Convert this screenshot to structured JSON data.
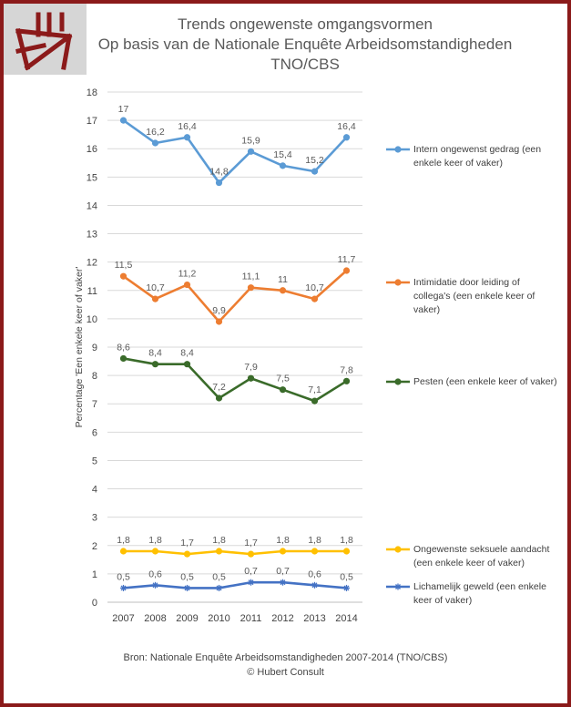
{
  "title": {
    "line1": "Trends ongewenste omgangsvormen",
    "line2": "Op basis van de Nationale Enquête Arbeidsomstandigheden",
    "line3": "TNO/CBS"
  },
  "logo": {
    "icon": "chair-logo-icon",
    "color": "#8b1a1a"
  },
  "footer": {
    "source": "Bron: Nationale Enquête Arbeidsomstandigheden 2007-2014 (TNO/CBS)",
    "credit": "© Hubert Consult"
  },
  "colors": {
    "frame": "#8b1a1a",
    "gridline": "#d9d9d9",
    "text": "#595959"
  },
  "chart_data": {
    "type": "line",
    "title": "Trends ongewenste omgangsvormen",
    "ylabel": "Percentage 'Een enkele keer of vaker'",
    "xlabel": "",
    "categories": [
      "2007",
      "2008",
      "2009",
      "2010",
      "2011",
      "2012",
      "2013",
      "2014"
    ],
    "ylim": [
      0,
      18
    ],
    "yticks": [
      "0",
      "1",
      "2",
      "3",
      "4",
      "5",
      "6",
      "7",
      "8",
      "9",
      "10",
      "11",
      "12",
      "13",
      "14",
      "15",
      "16",
      "17",
      "18"
    ],
    "grid": true,
    "legend_position": "right",
    "series": [
      {
        "name": "Intern ongewenst gedrag (een enkele keer of vaker)",
        "color": "#5b9bd5",
        "marker": "circle",
        "values": [
          17,
          16.2,
          16.4,
          14.8,
          15.9,
          15.4,
          15.2,
          16.4
        ],
        "labels": [
          "17",
          "16,2",
          "16,4",
          "14,8",
          "15,9",
          "15,4",
          "15,2",
          "16,4"
        ]
      },
      {
        "name": "Intimidatie door leiding of collega's (een enkele keer of vaker)",
        "color": "#ed7d31",
        "marker": "circle",
        "values": [
          11.5,
          10.7,
          11.2,
          9.9,
          11.1,
          11,
          10.7,
          11.7
        ],
        "labels": [
          "11,5",
          "10,7",
          "11,2",
          "9,9",
          "11,1",
          "11",
          "10,7",
          "11,7"
        ]
      },
      {
        "name": "Pesten (een enkele keer of vaker)",
        "color": "#3a6b2a",
        "marker": "circle",
        "values": [
          8.6,
          8.4,
          8.4,
          7.2,
          7.9,
          7.5,
          7.1,
          7.8
        ],
        "labels": [
          "8,6",
          "8,4",
          "8,4",
          "7,2",
          "7,9",
          "7,5",
          "7,1",
          "7,8"
        ]
      },
      {
        "name": "Ongewenste seksuele aandacht (een enkele keer of vaker)",
        "color": "#ffc000",
        "marker": "circle",
        "values": [
          1.8,
          1.8,
          1.7,
          1.8,
          1.7,
          1.8,
          1.8,
          1.8
        ],
        "labels": [
          "1,8",
          "1,8",
          "1,7",
          "1,8",
          "1,7",
          "1,8",
          "1,8",
          "1,8"
        ]
      },
      {
        "name": "Lichamelijk geweld (een enkele keer of vaker)",
        "color": "#4472c4",
        "marker": "star",
        "values": [
          0.5,
          0.6,
          0.5,
          0.5,
          0.7,
          0.7,
          0.6,
          0.5
        ],
        "labels": [
          "0,5",
          "0,6",
          "0,5",
          "0,5",
          "0,7",
          "0,7",
          "0,6",
          "0,5"
        ]
      }
    ]
  }
}
